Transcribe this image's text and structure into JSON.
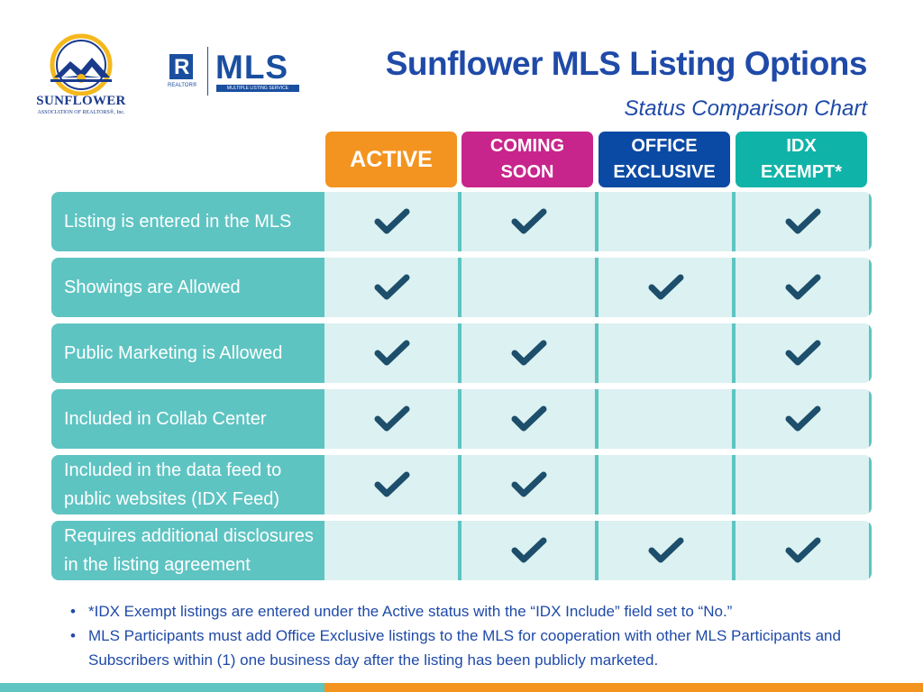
{
  "logos": {
    "association_name": "SUNFLOWER",
    "association_sub": "ASSOCIATION OF REALTORS®, Inc.",
    "realtor_mark": "REALTOR®",
    "mls_word": "MLS",
    "mls_sub": "MULTIPLE LISTING SERVICE"
  },
  "header": {
    "title": "Sunflower MLS Listing Options",
    "subtitle": "Status Comparison Chart"
  },
  "columns": [
    {
      "line1": "ACTIVE",
      "line2": "",
      "color": "#f39420"
    },
    {
      "line1": "COMING",
      "line2": "SOON",
      "color": "#c8258c"
    },
    {
      "line1": "OFFICE",
      "line2": "EXCLUSIVE",
      "color": "#0b4aa4"
    },
    {
      "line1": "IDX",
      "line2": "EXEMPT*",
      "color": "#10b3a8"
    }
  ],
  "rows": [
    {
      "label_line1": "Listing is entered in the MLS",
      "label_line2": "",
      "checks": [
        true,
        true,
        false,
        true
      ]
    },
    {
      "label_line1": "Showings are Allowed",
      "label_line2": "",
      "checks": [
        true,
        false,
        true,
        true
      ]
    },
    {
      "label_line1": "Public Marketing is Allowed",
      "label_line2": "",
      "checks": [
        true,
        true,
        false,
        true
      ]
    },
    {
      "label_line1": "Included in Collab Center",
      "label_line2": "",
      "checks": [
        true,
        true,
        false,
        true
      ]
    },
    {
      "label_line1": "Included in the data feed to",
      "label_line2": "public websites (IDX Feed)",
      "checks": [
        true,
        true,
        false,
        false
      ]
    },
    {
      "label_line1": "Requires additional disclosures",
      "label_line2": "in the listing agreement",
      "checks": [
        false,
        true,
        true,
        true
      ]
    }
  ],
  "notes": [
    "*IDX Exempt listings are entered under the Active status with the “IDX Include” field set to “No.”",
    "MLS Participants must add Office Exclusive listings to the MLS for cooperation with other MLS Participants and Subscribers within (1) one business day after the listing has been publicly marketed."
  ],
  "colors": {
    "teal": "#5ec4c2",
    "teal_light": "#dcf1f1",
    "check": "#1d4e6b",
    "title_blue": "#1f4aa8",
    "orange": "#f39420"
  },
  "icons": {
    "check": "check-icon",
    "house": "house-icon"
  }
}
